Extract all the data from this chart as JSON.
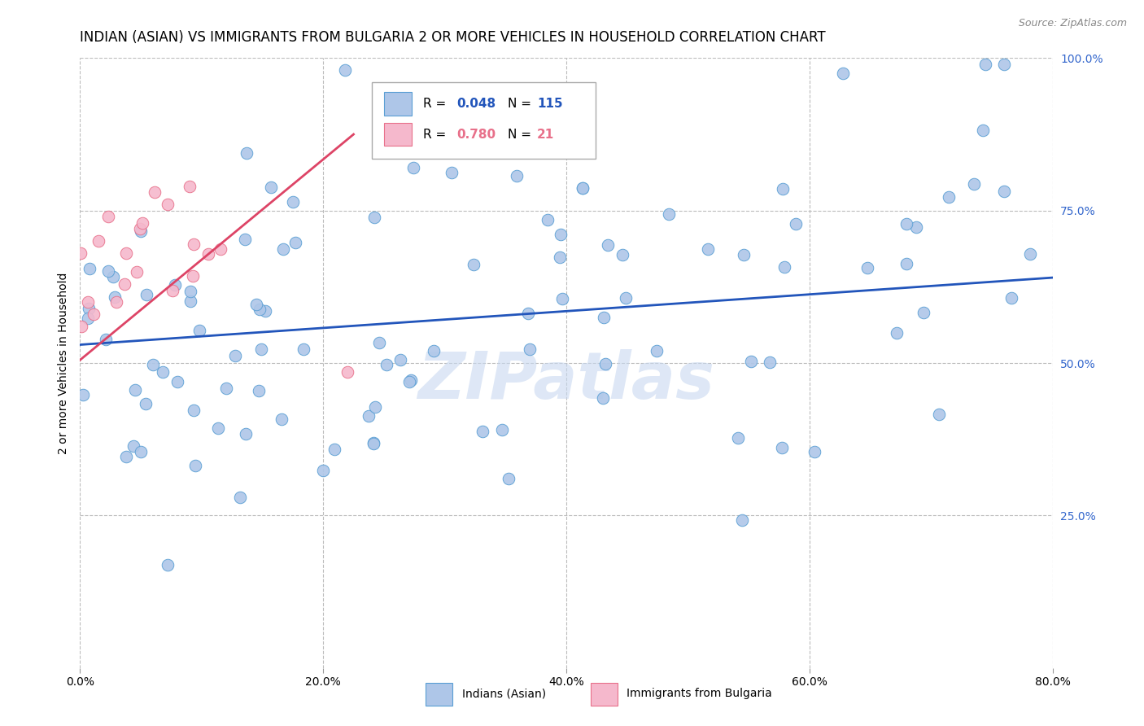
{
  "title": "INDIAN (ASIAN) VS IMMIGRANTS FROM BULGARIA 2 OR MORE VEHICLES IN HOUSEHOLD CORRELATION CHART",
  "source": "Source: ZipAtlas.com",
  "xlim": [
    0.0,
    0.8
  ],
  "ylim": [
    0.0,
    1.0
  ],
  "blue_R": 0.048,
  "blue_N": 115,
  "pink_R": 0.78,
  "pink_N": 21,
  "blue_color": "#aec6e8",
  "blue_edge": "#5a9fd4",
  "pink_color": "#f5b8cc",
  "pink_edge": "#e8708a",
  "blue_line_color": "#2255bb",
  "pink_line_color": "#dd4466",
  "watermark": "ZIPatlas",
  "watermark_color": "#c8d8f0",
  "background_color": "#ffffff",
  "grid_color": "#bbbbbb",
  "right_axis_color": "#3366cc",
  "title_fontsize": 12,
  "axis_label_fontsize": 10,
  "tick_fontsize": 10,
  "blue_line_x0": 0.0,
  "blue_line_x1": 0.8,
  "blue_line_y0": 0.53,
  "blue_line_y1": 0.64,
  "pink_line_x0": 0.0,
  "pink_line_x1": 0.225,
  "pink_line_y0": 0.505,
  "pink_line_y1": 0.875
}
